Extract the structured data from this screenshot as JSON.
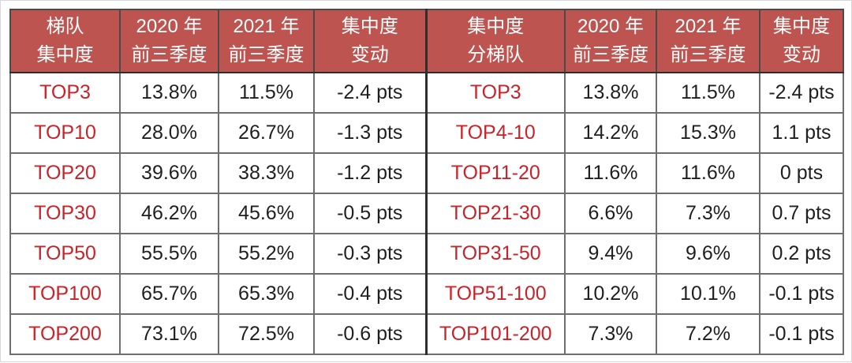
{
  "table": {
    "header_bg": "#be5450",
    "header_text_color": "#ffffff",
    "accent_red": "#c9232a",
    "body_text_color": "#1f1f1f",
    "grid_line_color": "#6e6e6e",
    "columns": [
      {
        "line1": "梯队",
        "line2": "集中度"
      },
      {
        "line1": "2020 年",
        "line2": "前三季度"
      },
      {
        "line1": "2021 年",
        "line2": "前三季度"
      },
      {
        "line1": "集中度",
        "line2": "变动"
      },
      {
        "line1": "集中度",
        "line2": "分梯队"
      },
      {
        "line1": "2020 年",
        "line2": "前三季度"
      },
      {
        "line1": "2021 年",
        "line2": "前三季度"
      },
      {
        "line1": "集中度",
        "line2": "变动"
      }
    ],
    "rows": [
      [
        "TOP3",
        "13.8%",
        "11.5%",
        "-2.4 pts",
        "TOP3",
        "13.8%",
        "11.5%",
        "-2.4 pts"
      ],
      [
        "TOP10",
        "28.0%",
        "26.7%",
        "-1.3 pts",
        "TOP4-10",
        "14.2%",
        "15.3%",
        "1.1 pts"
      ],
      [
        "TOP20",
        "39.6%",
        "38.3%",
        "-1.2 pts",
        "TOP11-20",
        "11.6%",
        "11.6%",
        "0 pts"
      ],
      [
        "TOP30",
        "46.2%",
        "45.6%",
        "-0.5 pts",
        "TOP21-30",
        "6.6%",
        "7.3%",
        "0.7 pts"
      ],
      [
        "TOP50",
        "55.5%",
        "55.2%",
        "-0.3 pts",
        "TOP31-50",
        "9.4%",
        "9.6%",
        "0.2 pts"
      ],
      [
        "TOP100",
        "65.7%",
        "65.3%",
        "-0.4 pts",
        "TOP51-100",
        "10.2%",
        "10.1%",
        "-0.1 pts"
      ],
      [
        "TOP200",
        "73.1%",
        "72.5%",
        "-0.6 pts",
        "TOP101-200",
        "7.3%",
        "7.2%",
        "-0.1 pts"
      ]
    ]
  },
  "chart_data": {
    "type": "table",
    "title": "",
    "columns": [
      "梯队集中度",
      "2020年前三季度",
      "2021年前三季度",
      "集中度变动",
      "集中度分梯队",
      "2020年前三季度",
      "2021年前三季度",
      "集中度变动"
    ],
    "rows": [
      [
        "TOP3",
        "13.8%",
        "11.5%",
        "-2.4 pts",
        "TOP3",
        "13.8%",
        "11.5%",
        "-2.4 pts"
      ],
      [
        "TOP10",
        "28.0%",
        "26.7%",
        "-1.3 pts",
        "TOP4-10",
        "14.2%",
        "15.3%",
        "1.1 pts"
      ],
      [
        "TOP20",
        "39.6%",
        "38.3%",
        "-1.2 pts",
        "TOP11-20",
        "11.6%",
        "11.6%",
        "0 pts"
      ],
      [
        "TOP30",
        "46.2%",
        "45.6%",
        "-0.5 pts",
        "TOP21-30",
        "6.6%",
        "7.3%",
        "0.7 pts"
      ],
      [
        "TOP50",
        "55.5%",
        "55.2%",
        "-0.3 pts",
        "TOP31-50",
        "9.4%",
        "9.6%",
        "0.2 pts"
      ],
      [
        "TOP100",
        "65.7%",
        "65.3%",
        "-0.4 pts",
        "TOP51-100",
        "10.2%",
        "10.1%",
        "-0.1 pts"
      ],
      [
        "TOP200",
        "73.1%",
        "72.5%",
        "-0.6 pts",
        "TOP101-200",
        "7.3%",
        "7.2%",
        "-0.1 pts"
      ]
    ]
  }
}
